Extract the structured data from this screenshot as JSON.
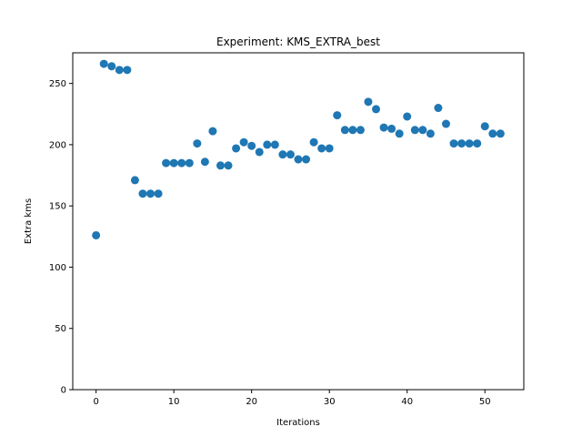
{
  "chart_data": {
    "type": "scatter",
    "title": "Experiment: KMS_EXTRA_best",
    "xlabel": "Iterations",
    "ylabel": "Extra kms",
    "xlim": [
      -3,
      55
    ],
    "ylim": [
      0,
      275
    ],
    "xticks": [
      0,
      10,
      20,
      30,
      40,
      50
    ],
    "yticks": [
      0,
      50,
      100,
      150,
      200,
      250
    ],
    "grid": false,
    "marker_color": "#1f77b4",
    "x": [
      0,
      1,
      2,
      3,
      4,
      5,
      6,
      7,
      8,
      9,
      10,
      11,
      12,
      13,
      14,
      15,
      16,
      17,
      18,
      19,
      20,
      21,
      22,
      23,
      24,
      25,
      26,
      27,
      28,
      29,
      30,
      31,
      32,
      33,
      34,
      35,
      36,
      37,
      38,
      39,
      40,
      41,
      42,
      43,
      44,
      45,
      46,
      47,
      48,
      49,
      50,
      51,
      52
    ],
    "y": [
      126,
      266,
      264,
      261,
      261,
      171,
      160,
      160,
      160,
      185,
      185,
      185,
      185,
      201,
      186,
      211,
      183,
      183,
      197,
      202,
      199,
      194,
      200,
      200,
      192,
      192,
      188,
      188,
      202,
      197,
      197,
      224,
      212,
      212,
      212,
      235,
      229,
      214,
      213,
      209,
      223,
      212,
      212,
      209,
      230,
      217,
      201,
      201,
      201,
      201,
      215,
      209,
      209
    ]
  }
}
